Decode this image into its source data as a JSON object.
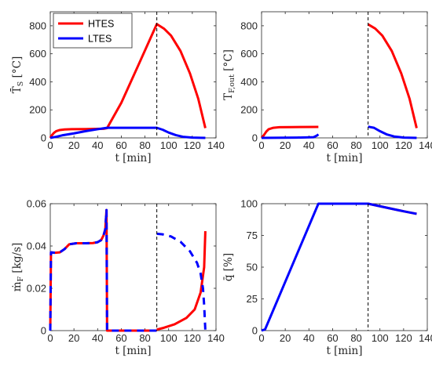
{
  "chart_data": [
    {
      "type": "line",
      "id": "hl",
      "ylabel": "T̄",
      "ylabel_sub": "S",
      "ylabel_unit": " [°C]",
      "xlabel": "t [min]",
      "xlim": [
        0,
        140
      ],
      "ylim": [
        0,
        900
      ],
      "xticks": [
        0,
        20,
        40,
        60,
        80,
        100,
        120,
        140
      ],
      "yticks": [
        0,
        200,
        400,
        600,
        800
      ],
      "vline": 90,
      "legend": {
        "position": "top-left",
        "entries": [
          "HTES",
          "LTES"
        ]
      },
      "series": [
        {
          "name": "HTES",
          "color": "#ff0000",
          "segments": [
            [
              [
                0,
                0
              ],
              [
                1,
                15
              ],
              [
                3,
                35
              ],
              [
                5,
                48
              ],
              [
                8,
                56
              ],
              [
                12,
                60
              ],
              [
                18,
                62
              ],
              [
                30,
                63
              ],
              [
                45,
                65
              ],
              [
                48,
                70
              ],
              [
                60,
                250
              ],
              [
                75,
                530
              ],
              [
                90,
                812
              ],
              [
                96,
                780
              ],
              [
                102,
                730
              ],
              [
                110,
                620
              ],
              [
                118,
                460
              ],
              [
                125,
                280
              ],
              [
                131,
                70
              ]
            ]
          ]
        },
        {
          "name": "LTES",
          "color": "#0000ff",
          "segments": [
            [
              [
                0,
                0
              ],
              [
                5,
                8
              ],
              [
                10,
                18
              ],
              [
                20,
                32
              ],
              [
                30,
                48
              ],
              [
                40,
                62
              ],
              [
                48,
                72
              ],
              [
                60,
                72
              ],
              [
                80,
                72
              ],
              [
                90,
                72
              ],
              [
                95,
                58
              ],
              [
                100,
                38
              ],
              [
                106,
                20
              ],
              [
                112,
                8
              ],
              [
                120,
                2
              ],
              [
                131,
                0
              ]
            ]
          ]
        }
      ]
    },
    {
      "type": "line",
      "id": "hr",
      "ylabel": "T",
      "ylabel_sub": "F,out",
      "ylabel_unit": " [°C]",
      "xlabel": "t [min]",
      "xlim": [
        0,
        140
      ],
      "ylim": [
        0,
        900
      ],
      "xticks": [
        0,
        20,
        40,
        60,
        80,
        100,
        120,
        140
      ],
      "yticks": [
        0,
        200,
        400,
        600,
        800
      ],
      "vline": 90,
      "series": [
        {
          "name": "HTES",
          "color": "#ff0000",
          "segments": [
            [
              [
                0,
                0
              ],
              [
                2,
                20
              ],
              [
                4,
                45
              ],
              [
                6,
                62
              ],
              [
                10,
                72
              ],
              [
                15,
                76
              ],
              [
                25,
                77
              ],
              [
                48,
                78
              ]
            ],
            [
              [
                90,
                810
              ],
              [
                96,
                780
              ],
              [
                102,
                730
              ],
              [
                110,
                620
              ],
              [
                118,
                460
              ],
              [
                125,
                280
              ],
              [
                131,
                70
              ]
            ]
          ]
        },
        {
          "name": "LTES",
          "color": "#0000ff",
          "segments": [
            [
              [
                0,
                0
              ],
              [
                10,
                1
              ],
              [
                30,
                2
              ],
              [
                44,
                5
              ],
              [
                47,
                18
              ],
              [
                48,
                25
              ]
            ],
            [
              [
                90,
                80
              ],
              [
                95,
                72
              ],
              [
                100,
                48
              ],
              [
                106,
                24
              ],
              [
                112,
                10
              ],
              [
                120,
                2
              ],
              [
                131,
                0
              ]
            ]
          ]
        }
      ]
    },
    {
      "type": "line",
      "id": "ll",
      "ylabel": "ṁ",
      "ylabel_sub": "F",
      "ylabel_unit": " [kg/s]",
      "xlabel": "t [min]",
      "xlim": [
        0,
        140
      ],
      "ylim": [
        0,
        0.06
      ],
      "xticks": [
        0,
        20,
        40,
        60,
        80,
        100,
        120,
        140
      ],
      "yticks": [
        0,
        0.02,
        0.04,
        0.06
      ],
      "ytick_labels": [
        "0",
        "0.02",
        "0.04",
        "0.06"
      ],
      "vline": 90,
      "series": [
        {
          "name": "HTES",
          "color": "#ff0000",
          "segments": [
            [
              [
                0,
                0
              ],
              [
                0.6,
                0.037
              ],
              [
                4,
                0.0368
              ],
              [
                8,
                0.037
              ],
              [
                12,
                0.0385
              ],
              [
                16,
                0.0408
              ],
              [
                22,
                0.0413
              ],
              [
                30,
                0.0413
              ],
              [
                36,
                0.0414
              ],
              [
                40,
                0.0418
              ],
              [
                43,
                0.0428
              ],
              [
                45,
                0.045
              ],
              [
                46.5,
                0.048
              ],
              [
                47.5,
                0.057
              ],
              [
                48,
                0
              ],
              [
                90,
                0
              ]
            ],
            [
              [
                90,
                0.0005
              ],
              [
                95,
                0.0012
              ],
              [
                105,
                0.003
              ],
              [
                115,
                0.006
              ],
              [
                122,
                0.01
              ],
              [
                127,
                0.018
              ],
              [
                130,
                0.03
              ],
              [
                131,
                0.047
              ]
            ]
          ]
        },
        {
          "name": "LTES",
          "color": "#0000ff",
          "dash": true,
          "segments": [
            [
              [
                0,
                0
              ],
              [
                0.6,
                0.037
              ],
              [
                4,
                0.0368
              ],
              [
                8,
                0.037
              ],
              [
                12,
                0.0385
              ],
              [
                16,
                0.0408
              ],
              [
                22,
                0.0413
              ],
              [
                30,
                0.0413
              ],
              [
                36,
                0.0414
              ],
              [
                40,
                0.0418
              ],
              [
                43,
                0.0428
              ],
              [
                45,
                0.045
              ],
              [
                46.5,
                0.048
              ],
              [
                47.5,
                0.057
              ],
              [
                48,
                0
              ],
              [
                90,
                0
              ]
            ],
            [
              [
                90,
                0.0458
              ],
              [
                95,
                0.0455
              ],
              [
                102,
                0.0445
              ],
              [
                110,
                0.042
              ],
              [
                118,
                0.0375
              ],
              [
                124,
                0.032
              ],
              [
                127,
                0.027
              ],
              [
                129,
                0.02
              ],
              [
                130,
                0.012
              ],
              [
                131,
                0
              ]
            ]
          ]
        }
      ]
    },
    {
      "type": "line",
      "id": "lr",
      "ylabel": "q̄",
      "ylabel_sub": "",
      "ylabel_unit": " [%]",
      "xlabel": "t [min]",
      "xlim": [
        0,
        140
      ],
      "ylim": [
        0,
        100
      ],
      "xticks": [
        0,
        20,
        40,
        60,
        80,
        100,
        120,
        140
      ],
      "yticks": [
        0,
        25,
        50,
        75,
        100
      ],
      "vline": 90,
      "series": [
        {
          "name": "HTES",
          "color": "#ff0000",
          "segments": [
            [
              [
                90,
                100
              ],
              [
                100,
                98
              ],
              [
                110,
                96
              ],
              [
                120,
                94
              ],
              [
                131,
                92
              ]
            ]
          ]
        },
        {
          "name": "LTES",
          "color": "#0000ff",
          "segments": [
            [
              [
                0,
                0
              ],
              [
                3,
                1
              ],
              [
                48,
                100
              ],
              [
                90,
                100
              ],
              [
                100,
                98
              ],
              [
                110,
                96
              ],
              [
                120,
                94
              ],
              [
                131,
                92
              ]
            ]
          ]
        }
      ]
    }
  ]
}
